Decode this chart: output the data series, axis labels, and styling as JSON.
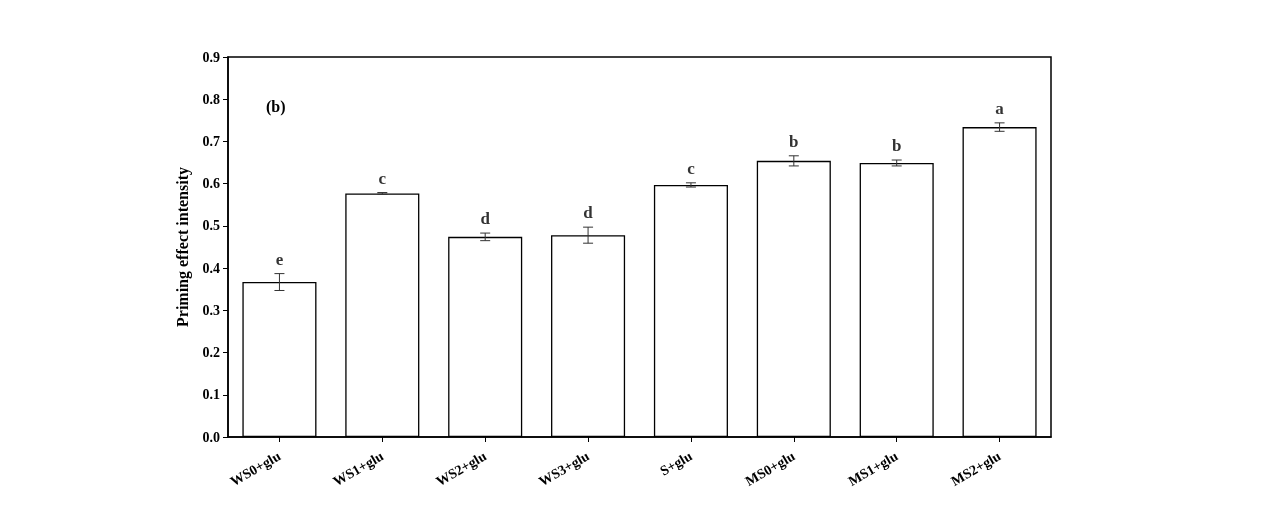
{
  "chart_data": {
    "type": "bar",
    "ylabel": "Priming effect intensity",
    "categories": [
      "WS0+glu",
      "WS1+glu",
      "WS2+glu",
      "WS3+glu",
      "S+glu",
      "MS0+glu",
      "MS1+glu",
      "MS2+glu"
    ],
    "values": [
      0.367,
      0.577,
      0.474,
      0.478,
      0.597,
      0.654,
      0.649,
      0.734
    ],
    "errors": [
      0.02,
      0.002,
      0.009,
      0.019,
      0.005,
      0.012,
      0.007,
      0.01
    ],
    "color": "#ffffff",
    "ylim": [
      0,
      0.9
    ],
    "yticks": [
      {
        "value": 0,
        "label": "0.0"
      },
      0.1,
      0.2,
      0.3,
      0.4,
      0.5,
      0.6,
      0.7,
      0.8,
      0.9
    ],
    "grid": false,
    "annotations": [
      "(b)",
      {
        "text": "e",
        "x": "WS0+glu",
        "y": 0.367
      },
      {
        "text": "c",
        "x": "WS1+glu",
        "y": 0.577
      },
      {
        "text": "d",
        "x": "WS2+glu",
        "y": 0.474
      },
      {
        "text": "d",
        "x": "WS3+glu",
        "y": 0.478
      },
      {
        "text": "c",
        "x": "S+glu",
        "y": 0.597
      },
      {
        "text": "b",
        "x": "MS0+glu",
        "y": 0.654
      },
      {
        "text": "b",
        "x": "MS1+glu",
        "y": 0.649
      },
      {
        "text": "a",
        "x": "MS2+glu",
        "y": 0.734
      }
    ]
  }
}
